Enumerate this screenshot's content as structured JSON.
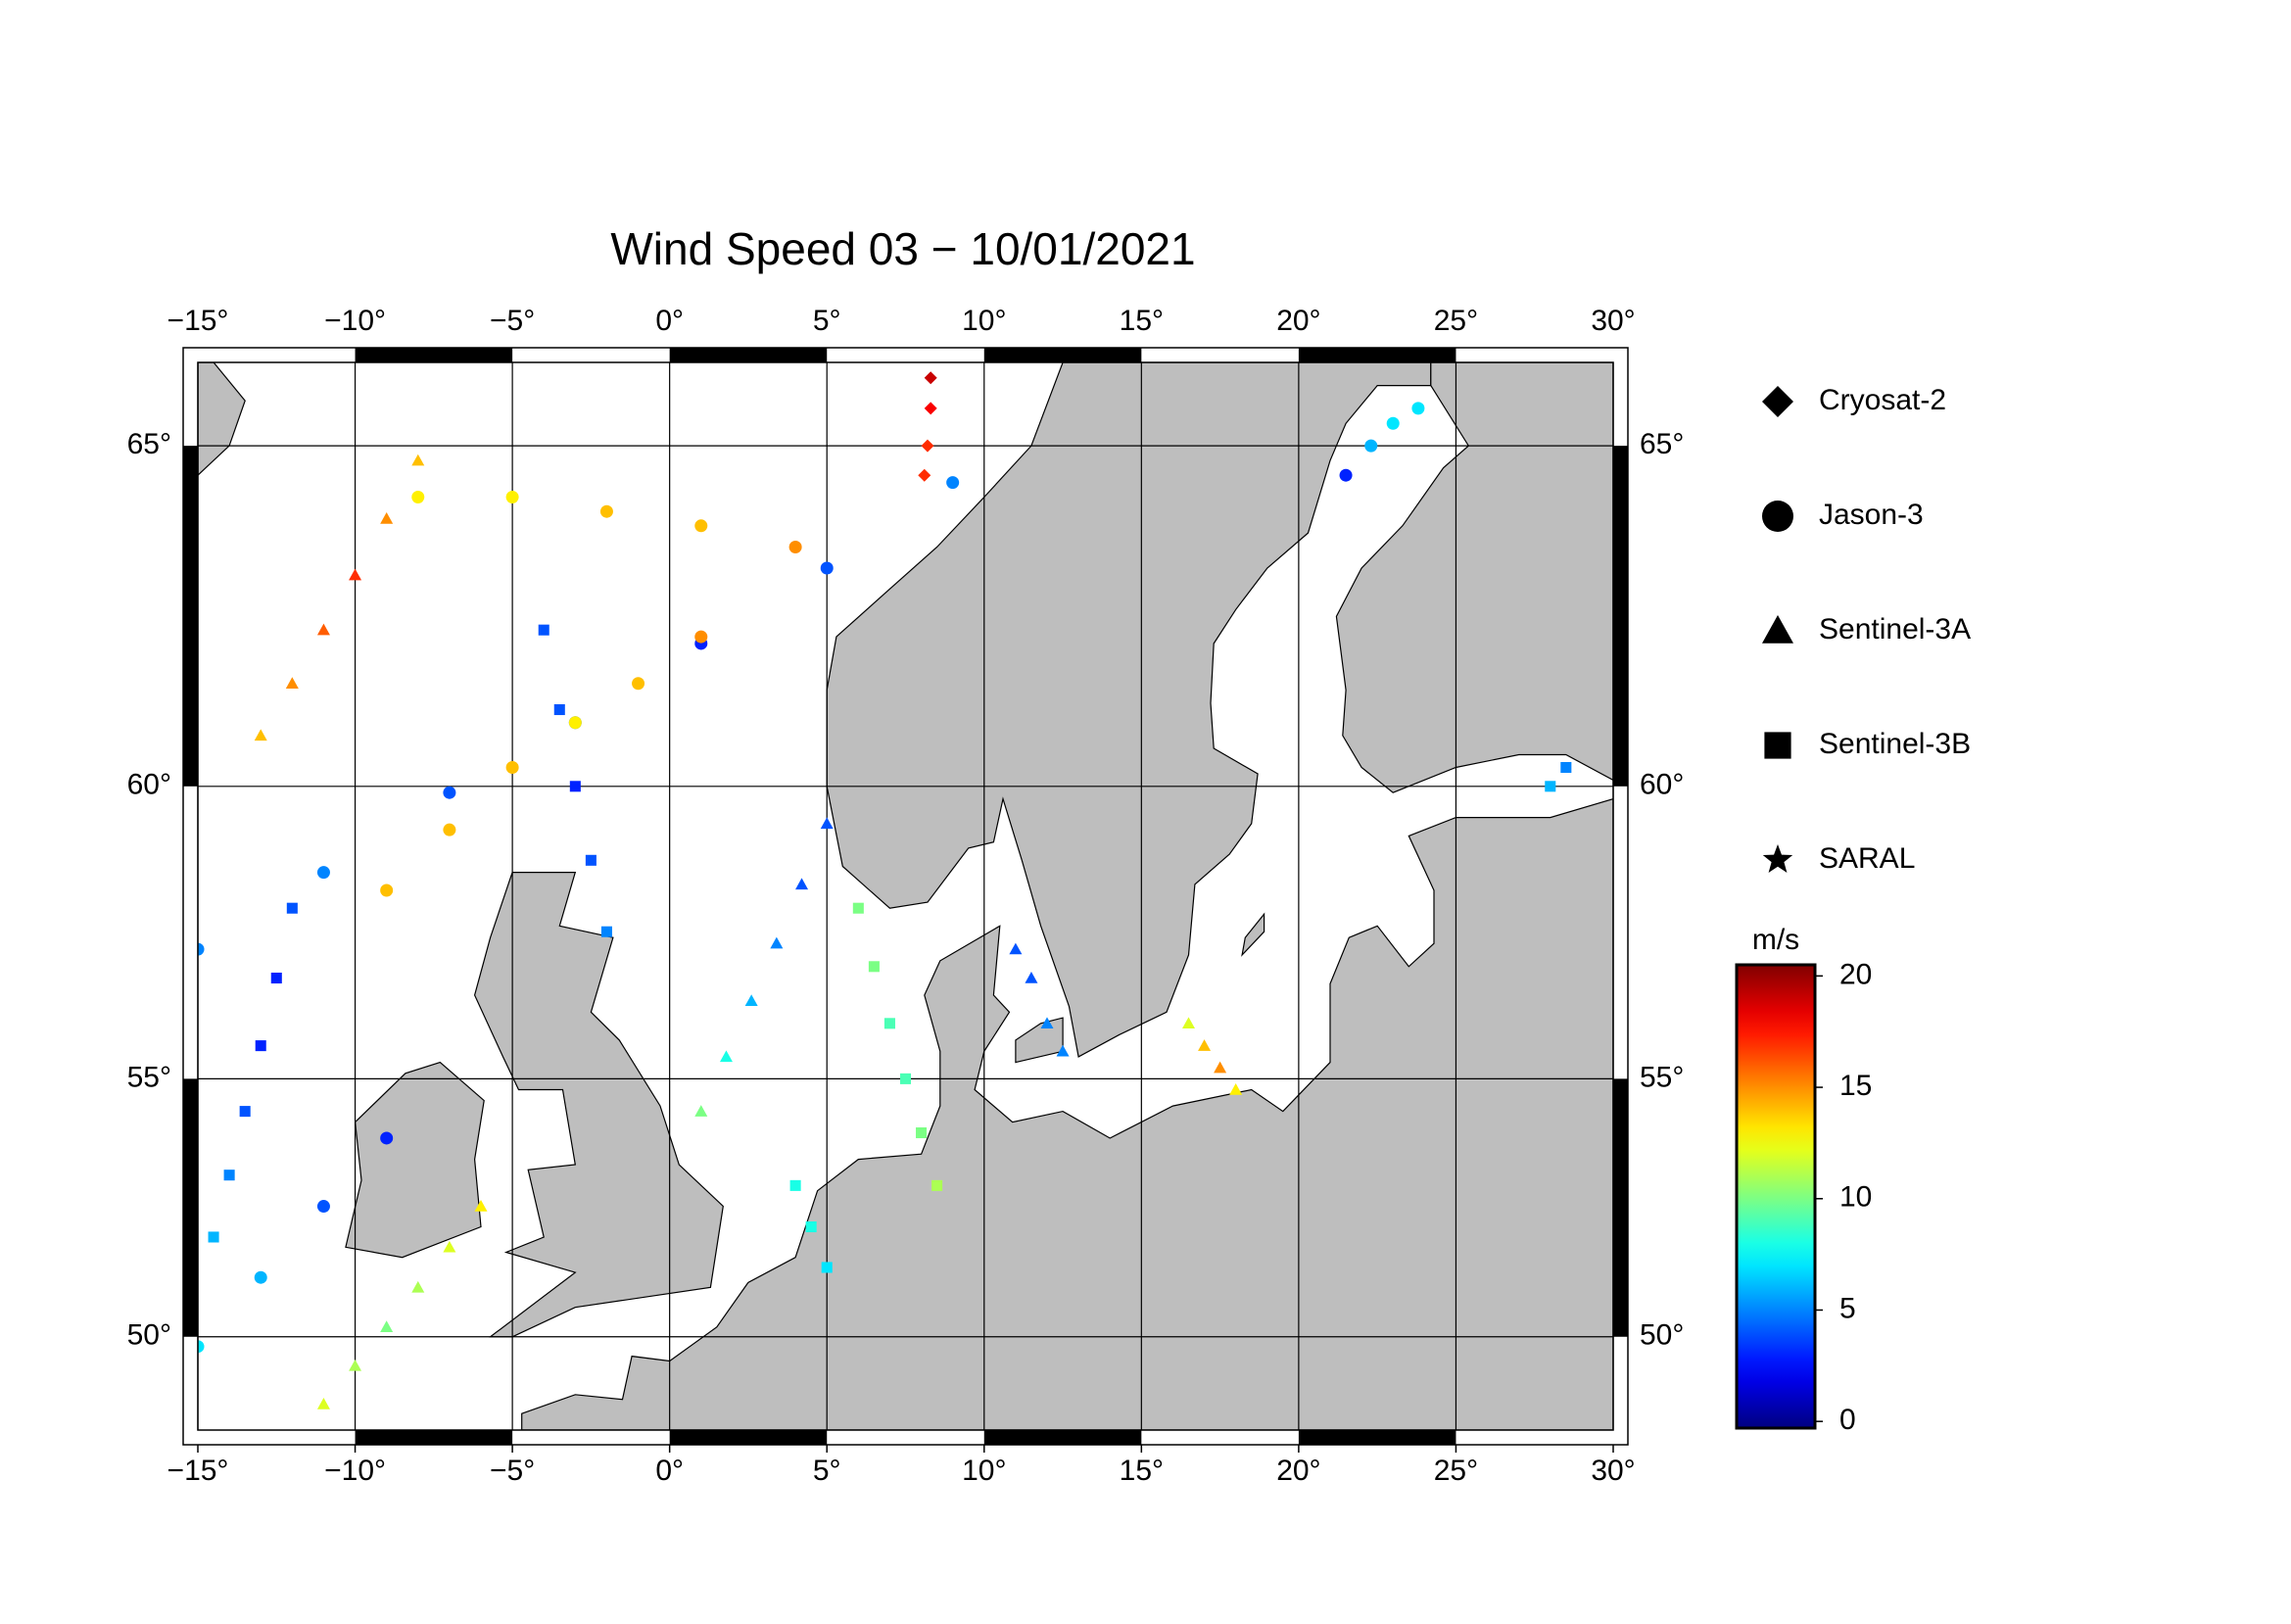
{
  "chart_data": {
    "type": "map",
    "title": "Wind Speed 03 − 10/01/2021",
    "projection": "mercator",
    "xlim": [
      -15,
      30
    ],
    "ylim": [
      48.05,
      66.1
    ],
    "xticks": [
      {
        "value": -15,
        "label": "−15°"
      },
      {
        "value": -10,
        "label": "−10°"
      },
      {
        "value": -5,
        "label": "−5°"
      },
      {
        "value": 0,
        "label": "0°"
      },
      {
        "value": 5,
        "label": "5°"
      },
      {
        "value": 10,
        "label": "10°"
      },
      {
        "value": 15,
        "label": "15°"
      },
      {
        "value": 20,
        "label": "20°"
      },
      {
        "value": 25,
        "label": "25°"
      },
      {
        "value": 30,
        "label": "30°"
      }
    ],
    "yticks": [
      {
        "value": 50,
        "label": "50°"
      },
      {
        "value": 55,
        "label": "55°"
      },
      {
        "value": 60,
        "label": "60°"
      },
      {
        "value": 65,
        "label": "65°"
      }
    ],
    "grid": true,
    "colorbar": {
      "label": "m/s",
      "colormap": "jet",
      "clim": [
        -0.3,
        20.5
      ],
      "ticks": [
        0,
        5,
        10,
        15,
        20
      ]
    },
    "series": [
      {
        "name": "Cryosat-2",
        "marker": "diamond",
        "lon": [
          8.3,
          8.3,
          8.2,
          8.1
        ],
        "lat": [
          65.9,
          65.5,
          65.0,
          64.6
        ],
        "values": [
          19,
          18,
          17,
          17
        ]
      },
      {
        "name": "Jason-3",
        "marker": "circle",
        "lon": [
          -15,
          -11,
          -7,
          -3,
          1,
          5,
          9,
          -9,
          -7,
          -5,
          -3,
          -1,
          1,
          -8,
          -5,
          -2,
          1,
          4,
          -15,
          -13,
          -11,
          -9,
          21.5,
          22.3,
          23,
          23.8
        ],
        "lat": [
          57.3,
          58.6,
          59.9,
          61.0,
          62.2,
          63.3,
          64.5,
          58.3,
          59.3,
          60.3,
          61.0,
          61.6,
          62.3,
          64.3,
          64.3,
          64.1,
          63.9,
          63.6,
          49.8,
          51.2,
          52.6,
          53.9,
          64.6,
          65.0,
          65.3,
          65.5
        ],
        "values": [
          5,
          5,
          4,
          4,
          3,
          4,
          5,
          14,
          14,
          14,
          13,
          14,
          15,
          13,
          13,
          14,
          14,
          15,
          7,
          6,
          4,
          3,
          3,
          6,
          7,
          7
        ]
      },
      {
        "name": "Sentinel-3A",
        "marker": "triangle",
        "lon": [
          5,
          4.2,
          3.4,
          2.6,
          1.8,
          1.0,
          -13,
          -12,
          -11,
          -10,
          -9,
          -8,
          11,
          11.5,
          12,
          12.5,
          16.5,
          17,
          17.5,
          18,
          -11,
          -10,
          -9,
          -8,
          -7,
          -6
        ],
        "lat": [
          59.4,
          58.4,
          57.4,
          56.4,
          55.4,
          54.4,
          60.8,
          61.6,
          62.4,
          63.2,
          64.0,
          64.8,
          57.3,
          56.8,
          56.0,
          55.5,
          56.0,
          55.6,
          55.2,
          54.8,
          48.6,
          49.4,
          50.2,
          51.0,
          51.8,
          52.6
        ],
        "values": [
          4,
          4,
          5,
          6,
          8,
          10,
          14,
          15,
          16,
          17,
          15,
          14,
          4,
          4,
          5,
          5,
          12,
          14,
          15,
          13,
          12,
          11,
          10,
          11,
          12,
          13
        ]
      },
      {
        "name": "Sentinel-3B",
        "marker": "square",
        "lon": [
          -4,
          -3.5,
          -3,
          -2.5,
          -2,
          -12,
          -12.5,
          -13,
          -13.5,
          -14,
          -14.5,
          6,
          6.5,
          7,
          7.5,
          8,
          8.5,
          28,
          28.5,
          4,
          4.5,
          5
        ],
        "lat": [
          62.4,
          61.2,
          60.0,
          58.8,
          57.6,
          58,
          56.8,
          55.6,
          54.4,
          53.2,
          52.0,
          58,
          57,
          56,
          55,
          54,
          53,
          60,
          60.3,
          53,
          52.2,
          51.4
        ],
        "values": [
          4,
          4,
          3,
          4,
          5,
          4,
          3,
          3,
          4,
          5,
          6,
          10,
          10,
          9,
          9,
          10,
          11,
          6,
          5,
          8,
          8,
          7
        ]
      },
      {
        "name": "SARAL",
        "marker": "star",
        "lon": [],
        "lat": [],
        "values": []
      }
    ]
  }
}
